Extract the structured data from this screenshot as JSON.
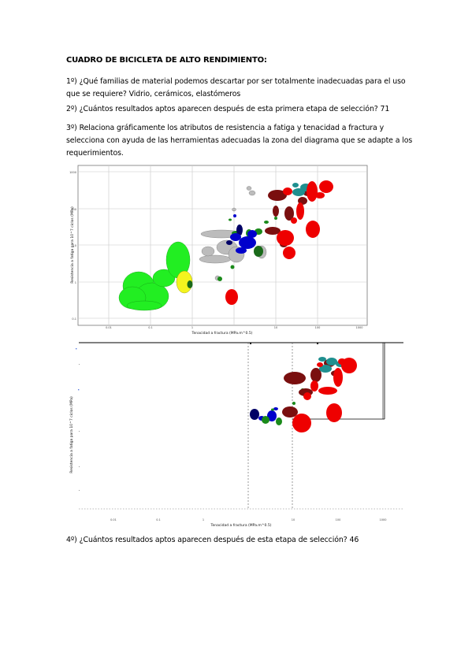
{
  "heading": "CUADRO DE BICICLETA DE ALTO RENDIMIENTO:",
  "q1": "1º) ¿Qué familias de material podemos descartar por ser totalmente inadecuadas para el uso que se requiere? Vidrio, cerámicos, elastómeros",
  "q2": "2º) ¿Cuántos resultados aptos aparecen después de esta primera etapa de selección? 71",
  "q3": "3º) Relaciona gráficamente los atributos de resistencia a fatiga y tenacidad a fractura y selecciona con ayuda de las herramientas adecuadas la zona del diagrama que se adapte a los requerimientos.",
  "q4": "4º) ¿Cuántos resultados aptos aparecen después de esta etapa de selección? 46",
  "chart1": {
    "xlabel": "Tenacidad a fractura (MPa.m^0.5)",
    "ylabel": "Resistencia a fatiga para 10^7 ciclos (MPa)",
    "xticks": [
      "0.01",
      "0.1",
      "1",
      "10",
      "100",
      "1000"
    ],
    "yticks": [
      "1000",
      "100",
      "10",
      "1",
      "0.1"
    ]
  },
  "chart2": {
    "xlabel": "Tenacidad a fractura (MPa.m^0.5)",
    "ylabel": "Resistencia a fatiga para 10^7 ciclos (MPa)",
    "xticks": [
      "0.01",
      "0.1",
      "1",
      "10",
      "100",
      "1000"
    ]
  },
  "colors": {
    "red": "#ee0000",
    "darkred": "#7a0f0f",
    "teal": "#1f8f8f",
    "blue": "#0000cc",
    "navy": "#000066",
    "green": "#1a8a1a",
    "lightgreen": "#22ee22",
    "yellow": "#f4f41e",
    "gray": "#bcbcbc"
  }
}
